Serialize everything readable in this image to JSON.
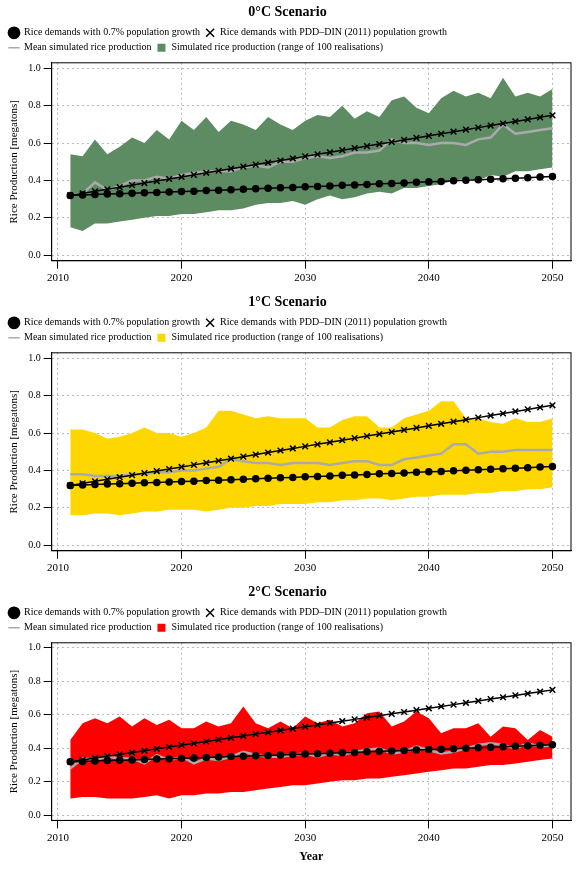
{
  "chart_data": [
    {
      "type": "line",
      "title": "0°C Scenario",
      "y_label": "Rice Production [megatons]",
      "x": [
        2011,
        2012,
        2013,
        2014,
        2015,
        2016,
        2017,
        2018,
        2019,
        2020,
        2021,
        2022,
        2023,
        2024,
        2025,
        2026,
        2027,
        2028,
        2029,
        2030,
        2031,
        2032,
        2033,
        2034,
        2035,
        2036,
        2037,
        2038,
        2039,
        2040,
        2041,
        2042,
        2043,
        2044,
        2045,
        2046,
        2047,
        2048,
        2049,
        2050
      ],
      "xlim": [
        2009.5,
        2051.5
      ],
      "xticks": [
        2010,
        2020,
        2030,
        2040,
        2050
      ],
      "ylim": [
        -0.03,
        1.03
      ],
      "yticks": [
        {
          "value": 0,
          "label": "0.0"
        },
        {
          "value": 0.2,
          "label": "0.2"
        },
        {
          "value": 0.4,
          "label": "0.4"
        },
        {
          "value": 0.6,
          "label": "0.6"
        },
        {
          "value": 0.8,
          "label": "0.8"
        },
        {
          "value": 1,
          "label": "1.0"
        }
      ],
      "grid": true,
      "legend": "top-left",
      "series": [
        {
          "name": "Rice demands with 0.7% population growth",
          "color": "#000000",
          "marker": "circle",
          "line_style": "solid",
          "values": [
            0.32,
            0.322,
            0.325,
            0.327,
            0.329,
            0.331,
            0.334,
            0.336,
            0.338,
            0.341,
            0.343,
            0.346,
            0.348,
            0.351,
            0.353,
            0.356,
            0.358,
            0.361,
            0.363,
            0.366,
            0.368,
            0.371,
            0.374,
            0.376,
            0.379,
            0.382,
            0.384,
            0.387,
            0.39,
            0.393,
            0.395,
            0.398,
            0.401,
            0.404,
            0.407,
            0.409,
            0.412,
            0.415,
            0.418,
            0.421
          ]
        },
        {
          "name": "Rice demands with PDD–DIN (2011) population growth",
          "color": "#000000",
          "marker": "x",
          "line_style": "solid",
          "values": [
            0.32,
            0.331,
            0.342,
            0.353,
            0.364,
            0.375,
            0.386,
            0.397,
            0.408,
            0.419,
            0.43,
            0.441,
            0.452,
            0.463,
            0.474,
            0.485,
            0.496,
            0.507,
            0.518,
            0.529,
            0.54,
            0.551,
            0.562,
            0.573,
            0.584,
            0.595,
            0.606,
            0.617,
            0.628,
            0.639,
            0.65,
            0.661,
            0.672,
            0.683,
            0.694,
            0.705,
            0.716,
            0.727,
            0.738,
            0.749
          ]
        },
        {
          "name": "Simulated rice production (range of 100 realisations)",
          "type": "area",
          "color": "#5e8c62",
          "low": [
            0.15,
            0.13,
            0.17,
            0.17,
            0.18,
            0.19,
            0.2,
            0.21,
            0.21,
            0.22,
            0.22,
            0.23,
            0.24,
            0.24,
            0.25,
            0.27,
            0.28,
            0.28,
            0.29,
            0.27,
            0.3,
            0.32,
            0.3,
            0.31,
            0.33,
            0.34,
            0.33,
            0.36,
            0.36,
            0.37,
            0.38,
            0.4,
            0.41,
            0.4,
            0.43,
            0.42,
            0.45,
            0.45,
            0.46,
            0.47
          ],
          "high": [
            0.54,
            0.53,
            0.62,
            0.54,
            0.58,
            0.63,
            0.6,
            0.67,
            0.62,
            0.72,
            0.67,
            0.74,
            0.66,
            0.72,
            0.7,
            0.67,
            0.74,
            0.7,
            0.67,
            0.72,
            0.75,
            0.74,
            0.8,
            0.73,
            0.77,
            0.74,
            0.83,
            0.85,
            0.79,
            0.76,
            0.84,
            0.88,
            0.85,
            0.87,
            0.84,
            0.95,
            0.85,
            0.87,
            0.85,
            0.89
          ]
        },
        {
          "name": "Mean simulated rice production",
          "color": "#aaaaaa",
          "marker": "none",
          "line_style": "solid",
          "values": [
            0.32,
            0.33,
            0.39,
            0.35,
            0.37,
            0.4,
            0.4,
            0.42,
            0.41,
            0.43,
            0.44,
            0.45,
            0.45,
            0.45,
            0.47,
            0.48,
            0.47,
            0.5,
            0.5,
            0.52,
            0.53,
            0.52,
            0.53,
            0.55,
            0.55,
            0.56,
            0.62,
            0.6,
            0.6,
            0.59,
            0.6,
            0.6,
            0.59,
            0.62,
            0.63,
            0.7,
            0.65,
            0.66,
            0.67,
            0.68
          ]
        }
      ]
    },
    {
      "type": "line",
      "title": "1°C Scenario",
      "y_label": "Rice Production [megatons]",
      "x": [
        2011,
        2012,
        2013,
        2014,
        2015,
        2016,
        2017,
        2018,
        2019,
        2020,
        2021,
        2022,
        2023,
        2024,
        2025,
        2026,
        2027,
        2028,
        2029,
        2030,
        2031,
        2032,
        2033,
        2034,
        2035,
        2036,
        2037,
        2038,
        2039,
        2040,
        2041,
        2042,
        2043,
        2044,
        2045,
        2046,
        2047,
        2048,
        2049,
        2050
      ],
      "xlim": [
        2009.5,
        2051.5
      ],
      "xticks": [
        2010,
        2020,
        2030,
        2040,
        2050
      ],
      "ylim": [
        -0.03,
        1.03
      ],
      "yticks": [
        {
          "value": 0,
          "label": "0.0"
        },
        {
          "value": 0.2,
          "label": "0.2"
        },
        {
          "value": 0.4,
          "label": "0.4"
        },
        {
          "value": 0.6,
          "label": "0.6"
        },
        {
          "value": 0.8,
          "label": "0.8"
        },
        {
          "value": 1,
          "label": "1.0"
        }
      ],
      "grid": true,
      "legend": "top-left",
      "series": [
        {
          "name": "Rice demands with 0.7% population growth",
          "color": "#000000",
          "marker": "circle",
          "line_style": "solid",
          "values": [
            0.32,
            0.322,
            0.325,
            0.327,
            0.329,
            0.331,
            0.334,
            0.336,
            0.338,
            0.341,
            0.343,
            0.346,
            0.348,
            0.351,
            0.353,
            0.356,
            0.358,
            0.361,
            0.363,
            0.366,
            0.368,
            0.371,
            0.374,
            0.376,
            0.379,
            0.382,
            0.384,
            0.387,
            0.39,
            0.393,
            0.395,
            0.398,
            0.401,
            0.404,
            0.407,
            0.409,
            0.412,
            0.415,
            0.418,
            0.421
          ]
        },
        {
          "name": "Rice demands with PDD–DIN (2011) population growth",
          "color": "#000000",
          "marker": "x",
          "line_style": "solid",
          "values": [
            0.32,
            0.331,
            0.342,
            0.353,
            0.364,
            0.375,
            0.386,
            0.397,
            0.408,
            0.419,
            0.43,
            0.441,
            0.452,
            0.463,
            0.474,
            0.485,
            0.496,
            0.507,
            0.518,
            0.529,
            0.54,
            0.551,
            0.562,
            0.573,
            0.584,
            0.595,
            0.606,
            0.617,
            0.628,
            0.639,
            0.65,
            0.661,
            0.672,
            0.683,
            0.694,
            0.705,
            0.716,
            0.727,
            0.738,
            0.749
          ]
        },
        {
          "name": "Simulated rice production (range of 100 realisations)",
          "type": "area",
          "color": "#ffd700",
          "low": [
            0.16,
            0.16,
            0.17,
            0.17,
            0.16,
            0.17,
            0.18,
            0.18,
            0.19,
            0.19,
            0.19,
            0.18,
            0.19,
            0.2,
            0.2,
            0.21,
            0.21,
            0.22,
            0.22,
            0.22,
            0.23,
            0.23,
            0.24,
            0.24,
            0.25,
            0.25,
            0.24,
            0.25,
            0.26,
            0.26,
            0.27,
            0.27,
            0.27,
            0.28,
            0.28,
            0.29,
            0.29,
            0.3,
            0.3,
            0.31
          ],
          "high": [
            0.62,
            0.62,
            0.6,
            0.57,
            0.58,
            0.6,
            0.63,
            0.6,
            0.6,
            0.58,
            0.6,
            0.63,
            0.72,
            0.72,
            0.7,
            0.68,
            0.69,
            0.68,
            0.68,
            0.68,
            0.63,
            0.63,
            0.67,
            0.69,
            0.69,
            0.63,
            0.63,
            0.68,
            0.7,
            0.72,
            0.77,
            0.77,
            0.68,
            0.68,
            0.66,
            0.65,
            0.68,
            0.66,
            0.66,
            0.68
          ]
        },
        {
          "name": "Mean simulated rice production",
          "color": "#aaaaaa",
          "marker": "none",
          "line_style": "solid",
          "values": [
            0.38,
            0.38,
            0.37,
            0.37,
            0.37,
            0.38,
            0.38,
            0.39,
            0.39,
            0.4,
            0.4,
            0.41,
            0.42,
            0.46,
            0.45,
            0.44,
            0.44,
            0.43,
            0.44,
            0.44,
            0.44,
            0.43,
            0.44,
            0.45,
            0.45,
            0.43,
            0.43,
            0.46,
            0.47,
            0.48,
            0.49,
            0.54,
            0.54,
            0.49,
            0.5,
            0.5,
            0.51,
            0.51,
            0.51,
            0.51
          ]
        }
      ]
    },
    {
      "type": "line",
      "title": "2°C Scenario",
      "y_label": "Rice Production [megatons]",
      "x_label": "Year",
      "x": [
        2011,
        2012,
        2013,
        2014,
        2015,
        2016,
        2017,
        2018,
        2019,
        2020,
        2021,
        2022,
        2023,
        2024,
        2025,
        2026,
        2027,
        2028,
        2029,
        2030,
        2031,
        2032,
        2033,
        2034,
        2035,
        2036,
        2037,
        2038,
        2039,
        2040,
        2041,
        2042,
        2043,
        2044,
        2045,
        2046,
        2047,
        2048,
        2049,
        2050
      ],
      "xlim": [
        2009.5,
        2051.5
      ],
      "xticks": [
        2010,
        2020,
        2030,
        2040,
        2050
      ],
      "ylim": [
        -0.03,
        1.03
      ],
      "yticks": [
        {
          "value": 0,
          "label": "0.0"
        },
        {
          "value": 0.2,
          "label": "0.2"
        },
        {
          "value": 0.4,
          "label": "0.4"
        },
        {
          "value": 0.6,
          "label": "0.6"
        },
        {
          "value": 0.8,
          "label": "0.8"
        },
        {
          "value": 1,
          "label": "1.0"
        }
      ],
      "grid": true,
      "legend": "top-left",
      "series": [
        {
          "name": "Rice demands with 0.7% population growth",
          "color": "#000000",
          "marker": "circle",
          "line_style": "solid",
          "values": [
            0.32,
            0.322,
            0.325,
            0.327,
            0.329,
            0.331,
            0.334,
            0.336,
            0.338,
            0.341,
            0.343,
            0.346,
            0.348,
            0.351,
            0.353,
            0.356,
            0.358,
            0.361,
            0.363,
            0.366,
            0.368,
            0.371,
            0.374,
            0.376,
            0.379,
            0.382,
            0.384,
            0.387,
            0.39,
            0.393,
            0.395,
            0.398,
            0.401,
            0.404,
            0.407,
            0.409,
            0.412,
            0.415,
            0.418,
            0.421
          ]
        },
        {
          "name": "Rice demands with PDD–DIN (2011) population growth",
          "color": "#000000",
          "marker": "x",
          "line_style": "solid",
          "values": [
            0.32,
            0.331,
            0.342,
            0.353,
            0.364,
            0.375,
            0.386,
            0.397,
            0.408,
            0.419,
            0.43,
            0.441,
            0.452,
            0.463,
            0.474,
            0.485,
            0.496,
            0.507,
            0.518,
            0.529,
            0.54,
            0.551,
            0.562,
            0.573,
            0.584,
            0.595,
            0.606,
            0.617,
            0.628,
            0.639,
            0.65,
            0.661,
            0.672,
            0.683,
            0.694,
            0.705,
            0.716,
            0.727,
            0.738,
            0.749
          ]
        },
        {
          "name": "Simulated rice production (range of 100 realisations)",
          "type": "area",
          "color": "#ff0000",
          "low": [
            0.1,
            0.11,
            0.11,
            0.1,
            0.1,
            0.1,
            0.11,
            0.12,
            0.1,
            0.12,
            0.12,
            0.13,
            0.13,
            0.14,
            0.14,
            0.15,
            0.16,
            0.17,
            0.18,
            0.18,
            0.19,
            0.2,
            0.21,
            0.21,
            0.22,
            0.22,
            0.23,
            0.24,
            0.25,
            0.26,
            0.27,
            0.28,
            0.28,
            0.29,
            0.3,
            0.3,
            0.31,
            0.32,
            0.33,
            0.34
          ],
          "high": [
            0.45,
            0.55,
            0.58,
            0.55,
            0.59,
            0.53,
            0.58,
            0.54,
            0.57,
            0.52,
            0.52,
            0.56,
            0.53,
            0.55,
            0.65,
            0.55,
            0.52,
            0.56,
            0.52,
            0.59,
            0.55,
            0.57,
            0.53,
            0.55,
            0.61,
            0.62,
            0.53,
            0.56,
            0.62,
            0.58,
            0.49,
            0.52,
            0.52,
            0.55,
            0.47,
            0.53,
            0.52,
            0.45,
            0.51,
            0.47
          ]
        },
        {
          "name": "Mean simulated rice production",
          "color": "#aaaaaa",
          "marker": "none",
          "line_style": "solid",
          "values": [
            0.28,
            0.34,
            0.33,
            0.35,
            0.34,
            0.34,
            0.31,
            0.36,
            0.33,
            0.35,
            0.31,
            0.34,
            0.33,
            0.35,
            0.38,
            0.36,
            0.35,
            0.35,
            0.36,
            0.37,
            0.35,
            0.37,
            0.36,
            0.38,
            0.39,
            0.4,
            0.37,
            0.38,
            0.41,
            0.39,
            0.37,
            0.38,
            0.4,
            0.42,
            0.43,
            0.42,
            0.4,
            0.43,
            0.41,
            0.42
          ]
        }
      ]
    }
  ]
}
